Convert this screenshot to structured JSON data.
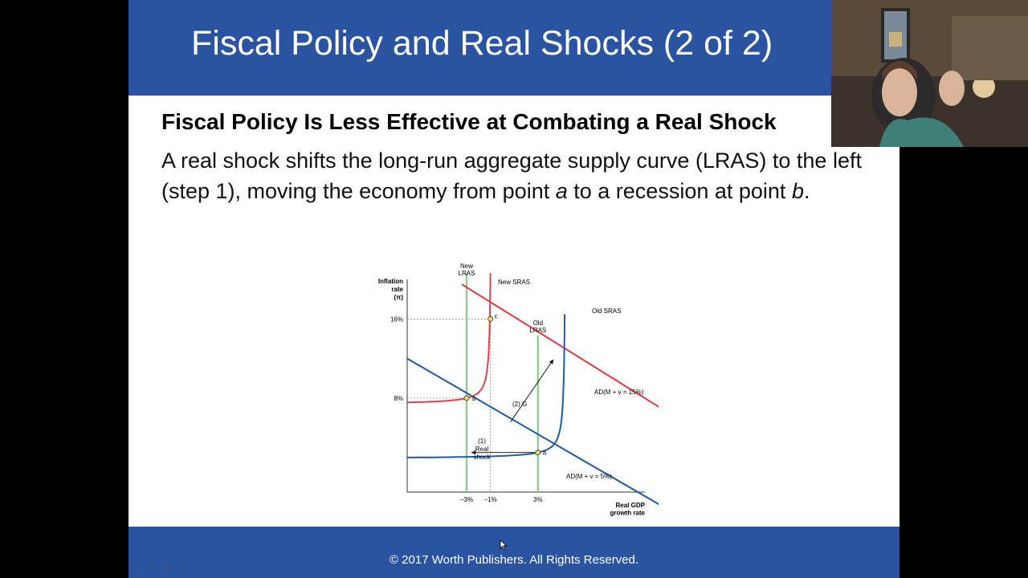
{
  "slide": {
    "title": "Fiscal Policy and Real Shocks (2 of 2)",
    "subtitle": "Fiscal Policy Is Less Effective at Combating a Real Shock",
    "body": {
      "part1": "A real shock shifts the long-run aggregate supply curve (LRAS) to the left (step 1), moving the economy from point ",
      "point_a": "a",
      "part2": " to a recession at point ",
      "point_b": "b",
      "part3": "."
    },
    "footer": "© 2017 Worth Publishers. All Rights Reserved."
  },
  "chart_data": {
    "type": "line",
    "ylabel": [
      "Inflation",
      "rate",
      "(π)"
    ],
    "xlabel": [
      "Real GDP",
      "growth rate"
    ],
    "x_ticks": [
      "−3%",
      "−1%",
      "3%"
    ],
    "y_ticks": [
      "16%",
      "8%"
    ],
    "xlim": [
      -8,
      12
    ],
    "ylim": [
      -1.5,
      20
    ],
    "curves": {
      "new_lras": {
        "label": [
          "New",
          "LRAS"
        ],
        "x": -3
      },
      "old_lras": {
        "label": [
          "Old",
          "LRAS"
        ],
        "x": 3
      },
      "new_sras": {
        "label": "New SRAS"
      },
      "old_sras": {
        "label": "Old SRAS"
      },
      "ad_high": {
        "label": "AD(M + v = 15%)",
        "points": [
          [
            -3.4,
            19.5
          ],
          [
            16,
            5
          ]
        ]
      },
      "ad_low": {
        "label": "AD(M + v = 5%)",
        "points": [
          [
            -8,
            12
          ],
          [
            15,
            -4
          ]
        ]
      }
    },
    "points": [
      {
        "name": "a",
        "x": 3,
        "y": 2.5
      },
      {
        "name": "b",
        "x": -3,
        "y": 8
      },
      {
        "name": "c",
        "x": -1,
        "y": 16
      }
    ],
    "annotations": {
      "step1": [
        "(1)",
        "Real",
        "shock"
      ],
      "step2": "(2) G"
    },
    "colors": {
      "lras": "#8cc98c",
      "sras_new": "#d9434b",
      "ad": "#1f5aa6",
      "ad_high": "#e03a42",
      "point_fill": "#f5e05a"
    }
  },
  "icons": [
    "back-arrow-icon",
    "pen-icon",
    "slide-menu-icon",
    "forward-arrow-icon",
    "mouse-cursor-icon"
  ]
}
